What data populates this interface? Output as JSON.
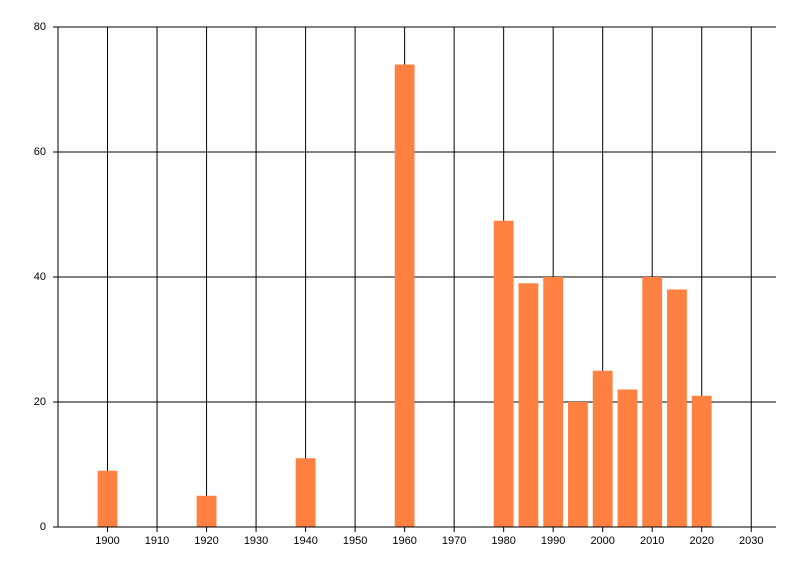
{
  "chart_data": {
    "type": "bar",
    "x": [
      1900,
      1920,
      1940,
      1960,
      1980,
      1985,
      1990,
      1995,
      2000,
      2005,
      2010,
      2015,
      2020
    ],
    "values": [
      9,
      5,
      11,
      74,
      49,
      39,
      40,
      20,
      25,
      22,
      40,
      38,
      21
    ],
    "color": "#ff8040",
    "xlim": [
      1890,
      2035
    ],
    "ylim": [
      0,
      80
    ],
    "xticks": [
      1900,
      1910,
      1920,
      1930,
      1940,
      1950,
      1960,
      1970,
      1980,
      1990,
      2000,
      2010,
      2020,
      2030
    ],
    "yticks": [
      0,
      20,
      40,
      60,
      80
    ],
    "grid": true
  }
}
